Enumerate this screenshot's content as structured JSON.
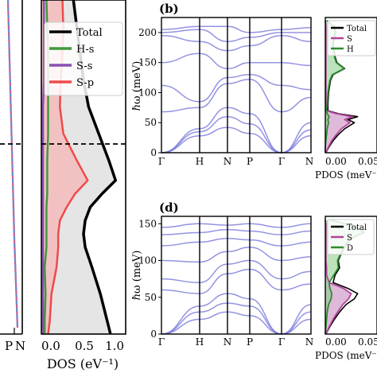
{
  "chart_data": [
    {
      "type": "line",
      "panel": "left band-structure strip (cropped)",
      "x_tick_labels": [
        "P",
        "N"
      ],
      "series": [
        {
          "color": "#cc5a8a",
          "style": "solid"
        },
        {
          "color": "#6a8fd6",
          "style": "dashed"
        }
      ],
      "fermi_line": {
        "style": "dashed",
        "color": "#000000"
      }
    },
    {
      "type": "area",
      "panel": "electronic DOS",
      "xlabel": "DOS (eV⁻¹)",
      "xlim": [
        0,
        1.0
      ],
      "x_ticks": [
        "0.0",
        "0.5",
        "1.0"
      ],
      "legend_position": "top-right",
      "legend": [
        {
          "label": "Total",
          "color": "#000000"
        },
        {
          "label": "H-s",
          "color": "#3f9a3f"
        },
        {
          "label": "S-s",
          "color": "#8a4fb0"
        },
        {
          "label": "S-p",
          "color": "#ee4a4a"
        }
      ],
      "fermi_line": {
        "style": "dashed",
        "color": "#000000"
      },
      "y": [
        0.0,
        0.08,
        0.16,
        0.24,
        0.32,
        0.4,
        0.48,
        0.54,
        0.58,
        0.62,
        0.66,
        0.7,
        0.74,
        0.8,
        0.88,
        0.96,
        1.0
      ],
      "curves": [
        {
          "name": "Total",
          "values": [
            0.38,
            0.42,
            0.46,
            0.5,
            0.56,
            0.68,
            0.8,
            0.88,
            0.72,
            0.58,
            0.52,
            0.5,
            0.52,
            0.6,
            0.7,
            0.78,
            0.82
          ]
        },
        {
          "name": "S-p",
          "values": [
            0.25,
            0.26,
            0.25,
            0.23,
            0.22,
            0.26,
            0.42,
            0.55,
            0.4,
            0.3,
            0.22,
            0.2,
            0.2,
            0.18,
            0.12,
            0.1,
            0.08
          ]
        },
        {
          "name": "H-s",
          "values": [
            0.06,
            0.07,
            0.08,
            0.08,
            0.08,
            0.08,
            0.07,
            0.07,
            0.07,
            0.06,
            0.06,
            0.06,
            0.06,
            0.04,
            0.05,
            0.04,
            0.04
          ]
        },
        {
          "name": "S-s",
          "values": [
            0.03,
            0.03,
            0.03,
            0.03,
            0.02,
            0.02,
            0.02,
            0.02,
            0.02,
            0.02,
            0.02,
            0.02,
            0.02,
            0.02,
            0.02,
            0.02,
            0.02
          ]
        }
      ]
    },
    {
      "type": "line",
      "panel": "(b)",
      "panel_label": "(b)",
      "ylabel": "ℏω (meV)",
      "ylim": [
        0,
        225
      ],
      "y_ticks": [
        0,
        50,
        100,
        150,
        200
      ],
      "x_ticks": [
        "Γ",
        "H",
        "N",
        "P",
        "Γ",
        "N"
      ],
      "x": [
        0,
        1,
        2,
        3,
        4,
        5
      ],
      "series": [
        {
          "values": [
            0,
            28,
            42,
            32,
            0,
            28
          ]
        },
        {
          "values": [
            0,
            35,
            60,
            48,
            0,
            38
          ]
        },
        {
          "values": [
            0,
            40,
            75,
            65,
            0,
            50
          ]
        },
        {
          "values": [
            68,
            75,
            115,
            122,
            68,
            92
          ]
        },
        {
          "values": [
            112,
            85,
            125,
            130,
            112,
            105
          ]
        },
        {
          "values": [
            150,
            165,
            140,
            150,
            150,
            145
          ]
        },
        {
          "values": [
            195,
            185,
            170,
            178,
            195,
            185
          ]
        },
        {
          "values": [
            200,
            205,
            185,
            192,
            200,
            200
          ]
        },
        {
          "values": [
            205,
            210,
            210,
            200,
            205,
            208
          ]
        }
      ]
    },
    {
      "type": "area",
      "panel": "(b) phonon DOS",
      "xlabel": "PDOS (meV⁻",
      "x_ticks": [
        "0.00",
        "0.05"
      ],
      "ylim": [
        0,
        225
      ],
      "legend": [
        {
          "label": "Total",
          "color": "#000000"
        },
        {
          "label": "S",
          "color": "#b0449a"
        },
        {
          "label": "H",
          "color": "#2e8b2e"
        }
      ],
      "y": [
        0,
        10,
        20,
        30,
        40,
        50,
        55,
        60,
        65,
        70,
        80,
        100,
        120,
        130,
        140,
        150,
        160,
        180,
        200,
        210,
        220
      ],
      "curves": [
        {
          "name": "Total",
          "values": [
            0.001,
            0.006,
            0.012,
            0.02,
            0.03,
            0.045,
            0.035,
            0.05,
            0.02,
            0.004,
            0.004,
            0.005,
            0.008,
            0.012,
            0.03,
            0.018,
            0.015,
            0.012,
            0.016,
            0.014,
            0.002
          ]
        },
        {
          "name": "S",
          "values": [
            0.001,
            0.005,
            0.01,
            0.017,
            0.025,
            0.038,
            0.03,
            0.042,
            0.017,
            0.002,
            0.001,
            0.001,
            0.001,
            0.001,
            0.001,
            0.001,
            0.001,
            0.001,
            0.001,
            0.001,
            0.0
          ]
        },
        {
          "name": "H",
          "values": [
            0.0,
            0.0,
            0.001,
            0.002,
            0.003,
            0.005,
            0.004,
            0.006,
            0.003,
            0.002,
            0.003,
            0.004,
            0.007,
            0.011,
            0.029,
            0.017,
            0.014,
            0.011,
            0.015,
            0.013,
            0.002
          ]
        }
      ]
    },
    {
      "type": "line",
      "panel": "(d)",
      "panel_label": "(d)",
      "ylabel": "ℏω (meV)",
      "ylim": [
        0,
        160
      ],
      "y_ticks": [
        0,
        50,
        100,
        150
      ],
      "x_ticks": [
        "Γ",
        "H",
        "N",
        "P",
        "Γ",
        "N"
      ],
      "x": [
        0,
        1,
        2,
        3,
        4,
        5
      ],
      "series": [
        {
          "values": [
            0,
            20,
            30,
            25,
            0,
            20
          ]
        },
        {
          "values": [
            0,
            30,
            42,
            38,
            0,
            30
          ]
        },
        {
          "values": [
            0,
            38,
            55,
            48,
            0,
            40
          ]
        },
        {
          "values": [
            60,
            55,
            82,
            88,
            60,
            68
          ]
        },
        {
          "values": [
            75,
            70,
            95,
            100,
            75,
            85
          ]
        },
        {
          "values": [
            100,
            98,
            112,
            118,
            100,
            105
          ]
        },
        {
          "values": [
            120,
            125,
            130,
            128,
            120,
            125
          ]
        },
        {
          "values": [
            135,
            138,
            142,
            140,
            135,
            140
          ]
        },
        {
          "values": [
            145,
            150,
            148,
            150,
            145,
            150
          ]
        }
      ]
    },
    {
      "type": "area",
      "panel": "(d) phonon DOS",
      "xlabel": "PDOS (meV⁻",
      "x_ticks": [
        "0.00",
        "0.05"
      ],
      "ylim": [
        0,
        160
      ],
      "legend": [
        {
          "label": "Total",
          "color": "#000000"
        },
        {
          "label": "S",
          "color": "#b0449a"
        },
        {
          "label": "D",
          "color": "#2e8b2e"
        }
      ],
      "y": [
        0,
        10,
        20,
        30,
        40,
        48,
        55,
        62,
        70,
        80,
        90,
        100,
        110,
        118,
        125,
        132,
        138,
        142,
        148,
        155
      ],
      "curves": [
        {
          "name": "Total",
          "values": [
            0.001,
            0.007,
            0.014,
            0.022,
            0.032,
            0.045,
            0.05,
            0.035,
            0.012,
            0.015,
            0.022,
            0.02,
            0.025,
            0.03,
            0.035,
            0.045,
            0.06,
            0.055,
            0.04,
            0.008
          ]
        },
        {
          "name": "S",
          "values": [
            0.001,
            0.006,
            0.012,
            0.019,
            0.027,
            0.036,
            0.04,
            0.028,
            0.006,
            0.002,
            0.002,
            0.001,
            0.001,
            0.001,
            0.001,
            0.001,
            0.001,
            0.001,
            0.001,
            0.0
          ]
        },
        {
          "name": "D",
          "values": [
            0.0,
            0.001,
            0.002,
            0.003,
            0.005,
            0.009,
            0.01,
            0.007,
            0.006,
            0.013,
            0.02,
            0.019,
            0.024,
            0.029,
            0.034,
            0.044,
            0.059,
            0.054,
            0.039,
            0.008
          ]
        }
      ]
    }
  ]
}
